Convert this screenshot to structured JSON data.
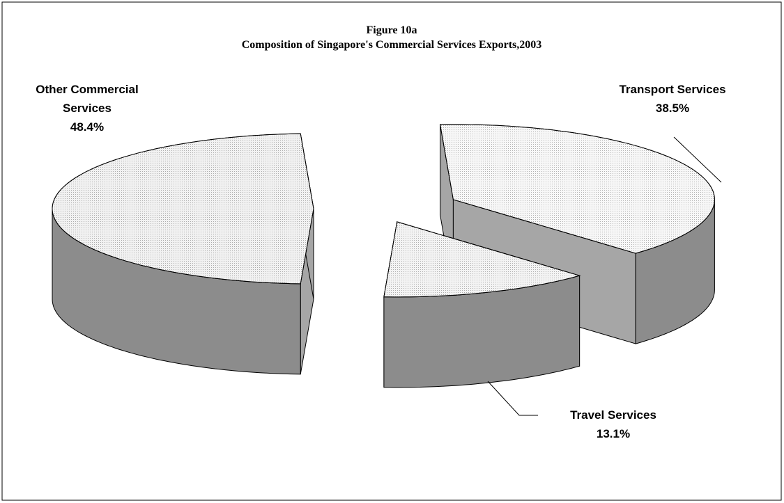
{
  "chart_data": {
    "type": "pie",
    "title": "Figure 10a",
    "subtitle": "Composition of Singapore's Commercial Services Exports,2003",
    "categories": [
      "Other Commercial Services",
      "Transport Services",
      "Travel Services"
    ],
    "values": [
      48.4,
      38.5,
      13.1
    ],
    "value_labels": [
      "48.4%",
      "38.5%",
      "13.1%"
    ],
    "colors": [
      "#e6e6e6",
      "#f0f0f0",
      "#e9e9e9"
    ]
  }
}
